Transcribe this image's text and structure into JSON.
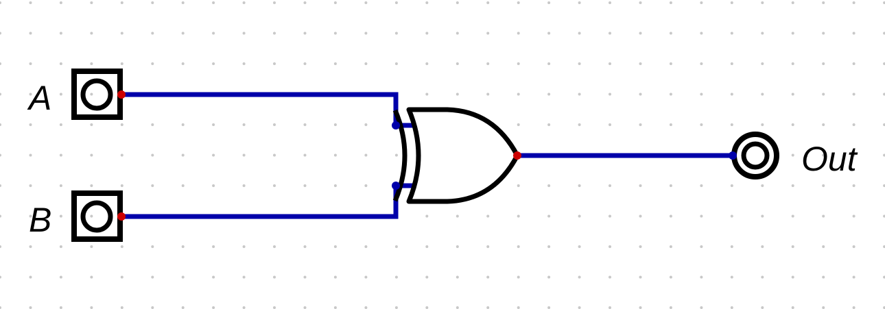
{
  "diagram": {
    "type": "logic-circuit",
    "colors": {
      "background": "#ffffff",
      "grid_dot": "#c8c8c8",
      "wire": "#0000aa",
      "component": "#000000",
      "input_port": "#cc0000",
      "output_port": "#0000aa"
    },
    "inputs": [
      {
        "label": "A"
      },
      {
        "label": "B"
      }
    ],
    "outputs": [
      {
        "label": "Out"
      }
    ],
    "gates": [
      {
        "kind": "XOR",
        "inputs": [
          "A",
          "B"
        ],
        "output": "Out"
      }
    ]
  }
}
